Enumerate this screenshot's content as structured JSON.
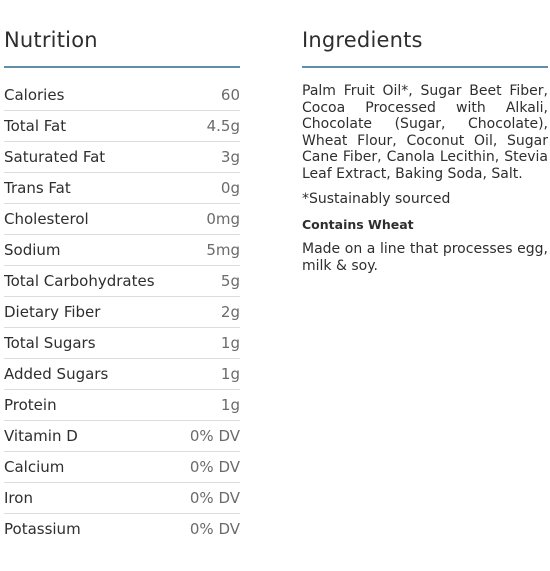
{
  "nutrition": {
    "title": "Nutrition",
    "rows": [
      {
        "name": "Calories",
        "value": "60"
      },
      {
        "name": "Total Fat",
        "value": "4.5g"
      },
      {
        "name": "Saturated Fat",
        "value": "3g"
      },
      {
        "name": "Trans Fat",
        "value": "0g"
      },
      {
        "name": "Cholesterol",
        "value": "0mg"
      },
      {
        "name": "Sodium",
        "value": "5mg"
      },
      {
        "name": "Total Carbohydrates",
        "value": "5g"
      },
      {
        "name": "Dietary Fiber",
        "value": "2g"
      },
      {
        "name": "Total Sugars",
        "value": "1g"
      },
      {
        "name": "Added Sugars",
        "value": "1g"
      },
      {
        "name": "Protein",
        "value": "1g"
      },
      {
        "name": "Vitamin D",
        "value": "0% DV"
      },
      {
        "name": "Calcium",
        "value": "0% DV"
      },
      {
        "name": "Iron",
        "value": "0% DV"
      },
      {
        "name": "Potassium",
        "value": "0% DV"
      }
    ]
  },
  "ingredients": {
    "title": "Ingredients",
    "text": "Palm Fruit Oil*, Sugar Beet Fiber, Cocoa Processed with Alkali, Chocolate (Sugar, Chocolate), Wheat Flour, Coconut Oil, Sugar Cane Fiber, Canola Lecithin, Stevia Leaf Extract, Baking Soda, Salt.",
    "footnote": "*Sustainably sourced",
    "allergen": "Contains Wheat",
    "facility": "Made on a line that processes egg, milk & soy."
  },
  "colors": {
    "rule": "#5f8ea8",
    "text": "#2e2e2e",
    "value_text": "#6b6b6b"
  }
}
